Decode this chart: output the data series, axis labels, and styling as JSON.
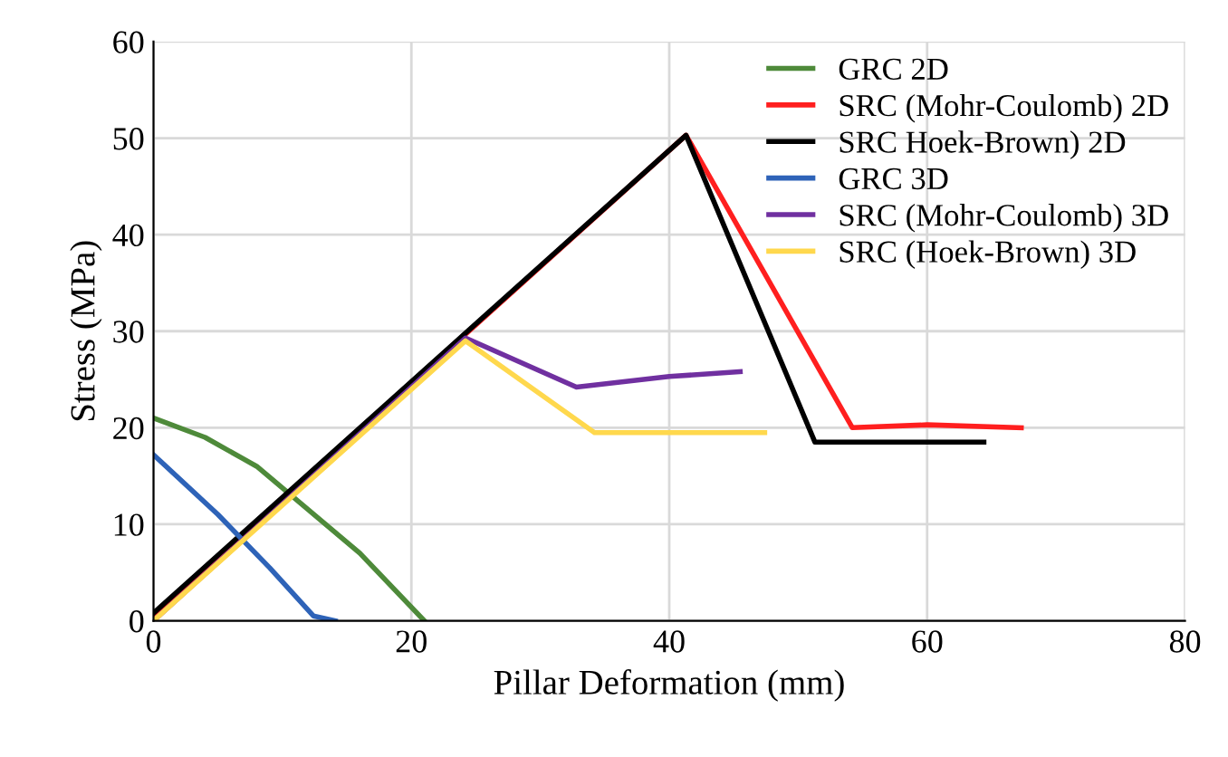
{
  "chart_data": {
    "type": "line",
    "xlabel": "Pillar Deformation (mm)",
    "ylabel": "Stress (MPa)",
    "xlim": [
      0,
      80
    ],
    "xticks": [
      0,
      20,
      40,
      60,
      80
    ],
    "ylim": [
      0,
      60
    ],
    "yticks": [
      0,
      10,
      20,
      30,
      40,
      50,
      60
    ],
    "grid": true,
    "legend": "top right",
    "marker": "none",
    "line_style": "solid",
    "series": [
      {
        "name": "GRC 2D",
        "color": "#4e8a3a",
        "x": [
          0,
          4,
          8,
          12,
          16,
          21
        ],
        "values": [
          21,
          19,
          16,
          11.5,
          7,
          0
        ]
      },
      {
        "name": "SRC (Mohr-Coulomb) 2D",
        "color": "#ff1f1f",
        "x": [
          0,
          41.3,
          54.2,
          60,
          67.3
        ],
        "values": [
          0.5,
          50.3,
          20,
          20.3,
          20
        ]
      },
      {
        "name": "SRC Hoek-Brown) 2D",
        "color": "#000000",
        "x": [
          0,
          41.3,
          51.3,
          64.4
        ],
        "values": [
          0.8,
          50.3,
          18.5,
          18.5
        ]
      },
      {
        "name": "GRC 3D",
        "color": "#2e63b8",
        "x": [
          0,
          5,
          9,
          12.4,
          14.1
        ],
        "values": [
          17.2,
          11,
          5.5,
          0.5,
          0
        ]
      },
      {
        "name": "SRC (Mohr-Coulomb) 3D",
        "color": "#7030a0",
        "x": [
          0,
          24.2,
          32.8,
          40,
          45.5
        ],
        "values": [
          0,
          29.3,
          24.2,
          25.3,
          25.8
        ]
      },
      {
        "name": "SRC (Hoek-Brown) 3D",
        "color": "#ffd84d",
        "x": [
          0,
          24.2,
          34.2,
          47.4
        ],
        "values": [
          0,
          29,
          19.5,
          19.5
        ]
      }
    ]
  }
}
